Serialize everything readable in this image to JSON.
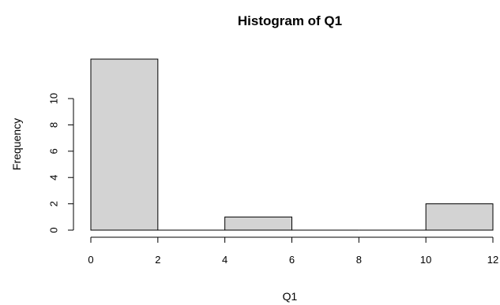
{
  "chart_data": {
    "type": "bar",
    "title": "Histogram of Q1",
    "xlabel": "Q1",
    "ylabel": "Frequency",
    "bins": [
      {
        "from": 0,
        "to": 2,
        "count": 13
      },
      {
        "from": 2,
        "to": 4,
        "count": 0
      },
      {
        "from": 4,
        "to": 6,
        "count": 1
      },
      {
        "from": 6,
        "to": 8,
        "count": 0
      },
      {
        "from": 8,
        "to": 10,
        "count": 0
      },
      {
        "from": 10,
        "to": 12,
        "count": 2
      }
    ],
    "xlim": [
      0,
      12
    ],
    "ylim": [
      0,
      13
    ],
    "x_ticks": [
      0,
      2,
      4,
      6,
      8,
      10,
      12
    ],
    "y_ticks": [
      0,
      2,
      4,
      6,
      8,
      10
    ],
    "bar_fill": "#d3d3d3",
    "grid": false,
    "legend": "none"
  }
}
